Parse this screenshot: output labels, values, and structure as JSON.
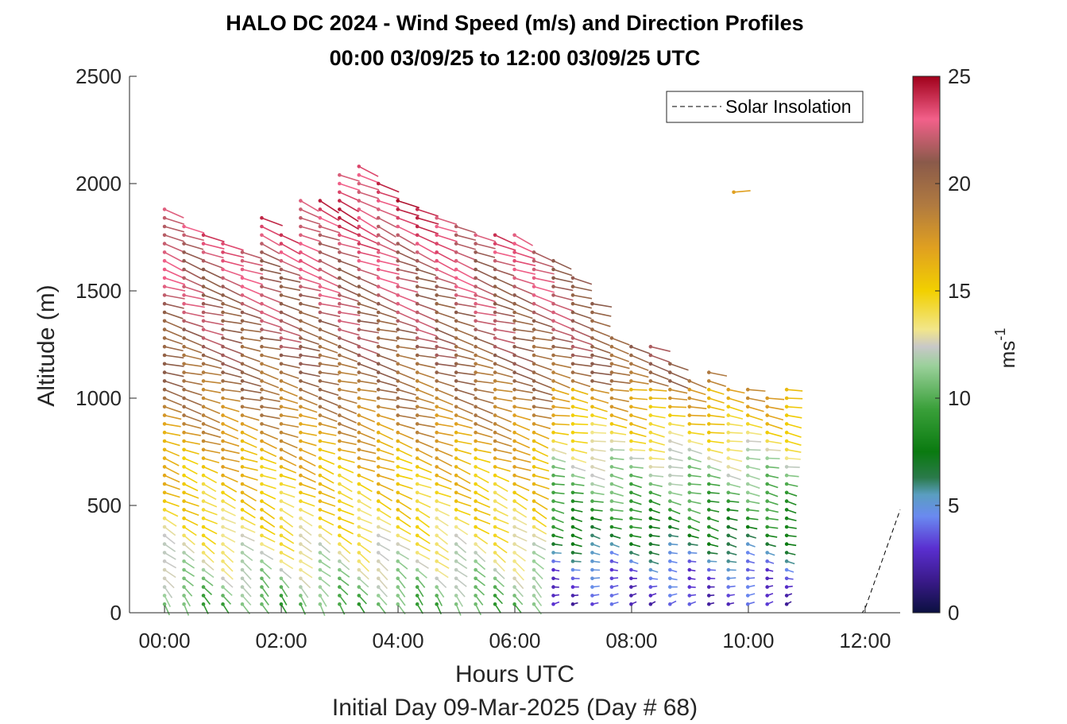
{
  "chart_data": {
    "type": "quiver-profile",
    "title": "HALO DC 2024 - Wind Speed (m/s) and Direction Profiles",
    "subtitle": "00:00 03/09/25 to 12:00 03/09/25  UTC",
    "xlabel": "Hours UTC",
    "xlabel2": "Initial Day 09-Mar-2025 (Day # 68)",
    "ylabel": "Altitude (m)",
    "xlim_hours": [
      -0.6,
      12.6
    ],
    "ylim": [
      0,
      2500
    ],
    "x_ticks": [
      {
        "hour": 0,
        "label": "00:00"
      },
      {
        "hour": 2,
        "label": "02:00"
      },
      {
        "hour": 4,
        "label": "04:00"
      },
      {
        "hour": 6,
        "label": "06:00"
      },
      {
        "hour": 8,
        "label": "08:00"
      },
      {
        "hour": 10,
        "label": "10:00"
      },
      {
        "hour": 12,
        "label": "12:00"
      }
    ],
    "y_ticks": [
      {
        "value": 0,
        "label": "0"
      },
      {
        "value": 500,
        "label": "500"
      },
      {
        "value": 1000,
        "label": "1000"
      },
      {
        "value": 1500,
        "label": "1500"
      },
      {
        "value": 2000,
        "label": "2000"
      },
      {
        "value": 2500,
        "label": "2500"
      }
    ],
    "colorbar": {
      "label": "ms",
      "label_exp": "-1",
      "range": [
        0,
        25
      ],
      "ticks": [
        {
          "value": 0,
          "label": "0"
        },
        {
          "value": 5,
          "label": "5"
        },
        {
          "value": 10,
          "label": "10"
        },
        {
          "value": 15,
          "label": "15"
        },
        {
          "value": 20,
          "label": "20"
        },
        {
          "value": 25,
          "label": "25"
        }
      ],
      "stops": [
        {
          "v": 0,
          "c": "#0b1040"
        },
        {
          "v": 1.5,
          "c": "#3a1a8a"
        },
        {
          "v": 3,
          "c": "#5a2fd0"
        },
        {
          "v": 4.5,
          "c": "#6a8af0"
        },
        {
          "v": 5.5,
          "c": "#5a9ec0"
        },
        {
          "v": 6.3,
          "c": "#2a7a4a"
        },
        {
          "v": 7.5,
          "c": "#0a7a10"
        },
        {
          "v": 9.5,
          "c": "#3aa03a"
        },
        {
          "v": 11.5,
          "c": "#9ad09a"
        },
        {
          "v": 12.4,
          "c": "#c8c8c8"
        },
        {
          "v": 13.2,
          "c": "#f2e68a"
        },
        {
          "v": 15,
          "c": "#f2d000"
        },
        {
          "v": 17,
          "c": "#e0a020"
        },
        {
          "v": 19,
          "c": "#b07a40"
        },
        {
          "v": 21,
          "c": "#8a5a4a"
        },
        {
          "v": 23,
          "c": "#f2608a"
        },
        {
          "v": 25,
          "c": "#a0001a"
        }
      ]
    },
    "legend": {
      "label": "Solar Insolation",
      "placement": "top-right",
      "style": "dashed"
    },
    "solar_insolation": {
      "hours": [
        -0.6,
        11.95,
        12.0,
        12.6
      ],
      "altitude": [
        0,
        0,
        20,
        480
      ]
    },
    "profiles": {
      "start_hour": 0,
      "step_hours": 0.333,
      "count": 33,
      "layer_spacing_m": 40,
      "min_altitude_m": 40,
      "top_altitude_m": [
        1910,
        1830,
        1760,
        1750,
        1710,
        1870,
        1780,
        1940,
        1950,
        2050,
        2080,
        2020,
        1940,
        1900,
        1870,
        1800,
        1790,
        1780,
        1760,
        1690,
        1660,
        1560,
        1460,
        1300,
        1260,
        1270,
        1190,
        1080,
        1120,
        1060,
        1050,
        1000,
        1040
      ]
    },
    "barbs": [
      {
        "alt": 40,
        "speed": 10,
        "dir": 330
      },
      {
        "alt": 200,
        "speed": 12,
        "dir": 310
      },
      {
        "alt": 400,
        "speed": 14,
        "dir": 300
      },
      {
        "alt": 700,
        "speed": 16,
        "dir": 290
      },
      {
        "alt": 1000,
        "speed": 19,
        "dir": 285
      },
      {
        "alt": 1300,
        "speed": 21,
        "dir": 285
      },
      {
        "alt": 1600,
        "speed": 22,
        "dir": 290
      },
      {
        "alt": 1900,
        "speed": 23.5,
        "dir": 295
      }
    ],
    "late_barbs": [
      {
        "alt": 40,
        "speed": 3,
        "dir": 250
      },
      {
        "alt": 200,
        "speed": 4,
        "dir": 280
      },
      {
        "alt": 400,
        "speed": 8,
        "dir": 285
      },
      {
        "alt": 700,
        "speed": 12,
        "dir": 280
      },
      {
        "alt": 1000,
        "speed": 17,
        "dir": 280
      }
    ],
    "isolated_barb": {
      "hour": 9.75,
      "alt": 1960,
      "speed": 17,
      "dir": 265
    }
  }
}
